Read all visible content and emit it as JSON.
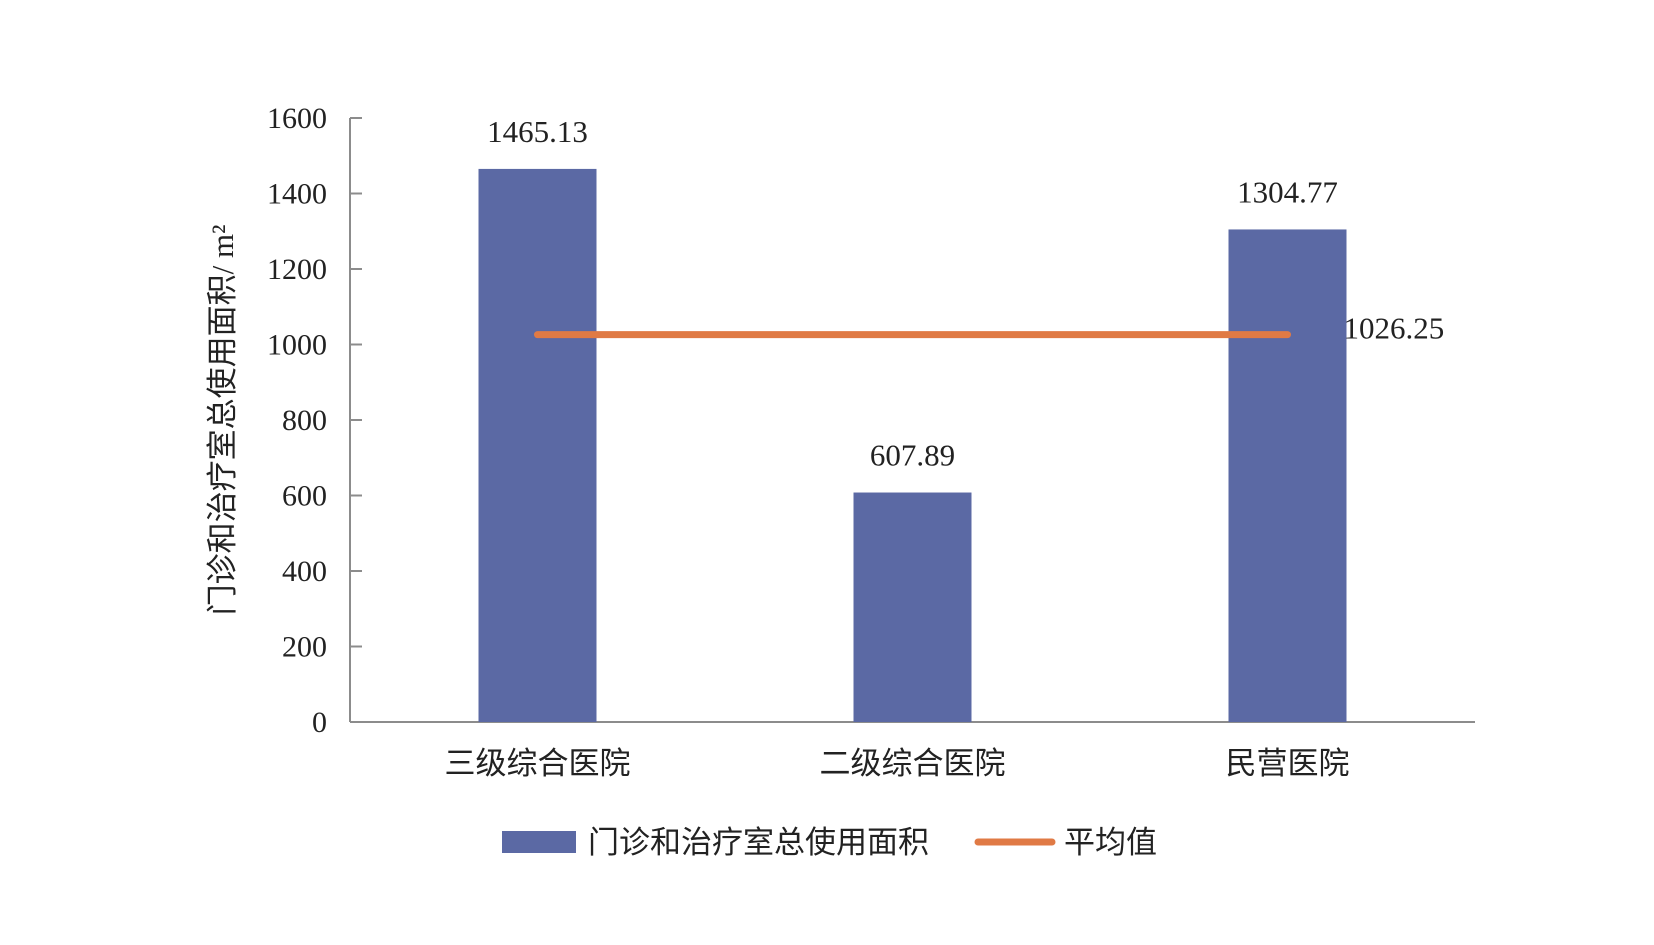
{
  "chart_data": {
    "type": "bar",
    "categories": [
      "三级综合医院",
      "二级综合医院",
      "民营医院"
    ],
    "series": [
      {
        "name": "门诊和治疗室总使用面积",
        "type": "bar",
        "values": [
          1465.13,
          607.89,
          1304.77
        ]
      },
      {
        "name": "平均值",
        "type": "line",
        "values": [
          1026.25,
          1026.25,
          1026.25
        ]
      }
    ],
    "data_labels": [
      "1465.13",
      "607.89",
      "1304.77"
    ],
    "average_label": "1026.25",
    "ylabel": "门诊和治疗室总使用面积/ m²",
    "xlabel": "",
    "ylim": [
      0,
      1600
    ],
    "yticks": [
      0,
      200,
      400,
      600,
      800,
      1000,
      1200,
      1400,
      1600
    ],
    "grid": false,
    "legend_position": "bottom",
    "colors": {
      "bar": "#5b69a4",
      "line": "#e07a45",
      "axis": "#8c8c8c"
    }
  }
}
